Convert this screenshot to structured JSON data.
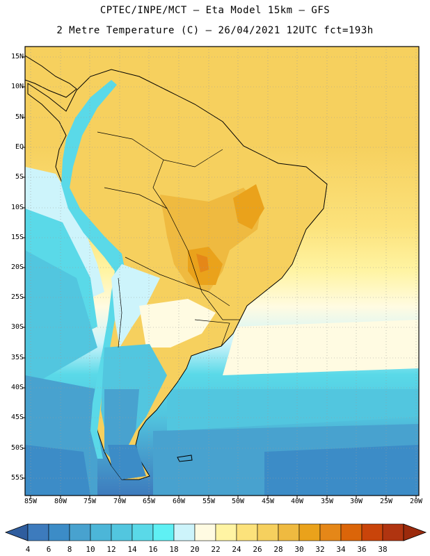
{
  "title": {
    "line1": "CPTEC/INPE/MCT –  Eta Model 15km – GFS",
    "line2": "2 Metre Temperature (C) – 26/04/2021 12UTC fct=193h"
  },
  "latitude_labels": [
    "15N",
    "10N",
    "5N",
    "EQ",
    "5S",
    "10S",
    "15S",
    "20S",
    "25S",
    "30S",
    "35S",
    "40S",
    "45S",
    "50S",
    "55S"
  ],
  "longitude_labels": [
    "85W",
    "80W",
    "75W",
    "70W",
    "65W",
    "60W",
    "55W",
    "50W",
    "45W",
    "40W",
    "35W",
    "30W",
    "25W",
    "20W"
  ],
  "colorbar": {
    "labels": [
      "4",
      "6",
      "8",
      "10",
      "12",
      "14",
      "16",
      "18",
      "20",
      "22",
      "24",
      "26",
      "28",
      "30",
      "32",
      "34",
      "36",
      "38"
    ],
    "colors": [
      "#3d7bbd",
      "#3c8cc7",
      "#48a2cf",
      "#4cb6d8",
      "#52c6df",
      "#5ad9e8",
      "#5ff0f4",
      "#cdf4fb",
      "#fffbe2",
      "#fff4a3",
      "#fce27b",
      "#f6d05e",
      "#efba40",
      "#eaa21b",
      "#e58718",
      "#db6509",
      "#c9440a",
      "#b03410"
    ]
  },
  "chart_data": {
    "type": "heatmap",
    "title": "2 Metre Temperature (C)",
    "model": "Eta Model 15km – GFS",
    "date": "26/04/2021 12UTC",
    "forecast": "fct=193h",
    "lon_range": [
      -85,
      -20
    ],
    "lat_range": [
      -57,
      17
    ],
    "units": "C",
    "value_range": [
      4,
      38
    ]
  }
}
